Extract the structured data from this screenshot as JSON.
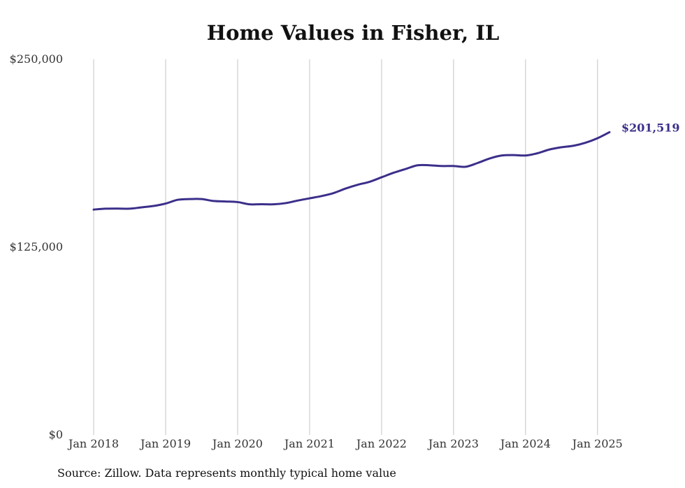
{
  "chart_data": {
    "type": "line",
    "title": "Home Values in Fisher, IL",
    "xlabel": "",
    "ylabel": "",
    "ylim": [
      0,
      250000
    ],
    "y_ticks": [
      {
        "value": 0,
        "label": "$0"
      },
      {
        "value": 125000,
        "label": "$125,000"
      },
      {
        "value": 250000,
        "label": "$250,000"
      }
    ],
    "x_ticks": [
      {
        "value": "2018-01",
        "label": "Jan 2018"
      },
      {
        "value": "2019-01",
        "label": "Jan 2019"
      },
      {
        "value": "2020-01",
        "label": "Jan 2020"
      },
      {
        "value": "2021-01",
        "label": "Jan 2021"
      },
      {
        "value": "2022-01",
        "label": "Jan 2022"
      },
      {
        "value": "2023-01",
        "label": "Jan 2023"
      },
      {
        "value": "2024-01",
        "label": "Jan 2024"
      },
      {
        "value": "2025-01",
        "label": "Jan 2025"
      }
    ],
    "xlim": [
      "2018-01",
      "2025-03"
    ],
    "grid": {
      "vertical": true,
      "horizontal": false
    },
    "legend": "none",
    "series": [
      {
        "color": "#3b2f8a",
        "end_label": "$201,519",
        "points": [
          [
            "2018-01",
            150000
          ],
          [
            "2018-03",
            150600
          ],
          [
            "2018-05",
            150700
          ],
          [
            "2018-07",
            150600
          ],
          [
            "2018-09",
            151500
          ],
          [
            "2018-11",
            152400
          ],
          [
            "2019-01",
            154000
          ],
          [
            "2019-03",
            156500
          ],
          [
            "2019-05",
            157000
          ],
          [
            "2019-07",
            157000
          ],
          [
            "2019-09",
            155700
          ],
          [
            "2019-11",
            155400
          ],
          [
            "2020-01",
            155000
          ],
          [
            "2020-03",
            153500
          ],
          [
            "2020-05",
            153600
          ],
          [
            "2020-07",
            153500
          ],
          [
            "2020-09",
            154300
          ],
          [
            "2020-11",
            156000
          ],
          [
            "2021-01",
            157500
          ],
          [
            "2021-03",
            159000
          ],
          [
            "2021-05",
            161000
          ],
          [
            "2021-07",
            164000
          ],
          [
            "2021-09",
            166500
          ],
          [
            "2021-11",
            168500
          ],
          [
            "2022-01",
            171500
          ],
          [
            "2022-03",
            174500
          ],
          [
            "2022-05",
            177000
          ],
          [
            "2022-07",
            179500
          ],
          [
            "2022-09",
            179500
          ],
          [
            "2022-11",
            179000
          ],
          [
            "2023-01",
            179000
          ],
          [
            "2023-03",
            178500
          ],
          [
            "2023-05",
            181000
          ],
          [
            "2023-07",
            184000
          ],
          [
            "2023-09",
            186000
          ],
          [
            "2023-11",
            186300
          ],
          [
            "2024-01",
            186000
          ],
          [
            "2024-03",
            187500
          ],
          [
            "2024-05",
            190000
          ],
          [
            "2024-07",
            191500
          ],
          [
            "2024-09",
            192500
          ],
          [
            "2024-11",
            194500
          ],
          [
            "2025-01",
            197500
          ],
          [
            "2025-03",
            201519
          ]
        ]
      }
    ]
  },
  "source_note": "Source: Zillow. Data represents monthly typical home value"
}
